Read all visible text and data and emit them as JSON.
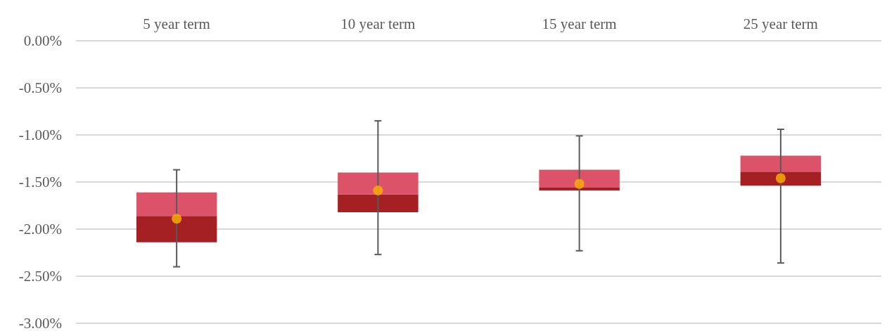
{
  "chart_data": {
    "type": "box",
    "categories": [
      "5 year term",
      "10 year term",
      "15 year term",
      "25 year term"
    ],
    "series": [
      {
        "color": "#a52023",
        "boxes": [
          {
            "low": -2.4,
            "q1": -2.14,
            "median": -1.86,
            "q3": -1.61,
            "high": -1.37
          },
          {
            "low": -2.27,
            "q1": -1.82,
            "median": -1.63,
            "q3": -1.4,
            "high": -0.85
          },
          {
            "low": -2.23,
            "q1": -1.59,
            "median": -1.56,
            "q3": -1.37,
            "high": -1.01
          },
          {
            "low": -2.36,
            "q1": -1.54,
            "median": -1.39,
            "q3": -1.22,
            "high": -0.94
          }
        ]
      },
      {
        "type": "scatter",
        "color": "#ffb000",
        "marker": "circle",
        "x": [
          "5 year term",
          "10 year term",
          "15 year term",
          "25 year term"
        ],
        "values": [
          -1.89,
          -1.59,
          -1.52,
          -1.46
        ]
      }
    ],
    "ylim": [
      -3,
      0
    ],
    "yticks": [
      {
        "value": 0,
        "label": "0.00%"
      },
      {
        "value": -0.5,
        "label": "-0.50%"
      },
      {
        "value": -1,
        "label": "-1.00%"
      },
      {
        "value": -1.5,
        "label": "-1.50%"
      },
      {
        "value": -2,
        "label": "-2.00%"
      },
      {
        "value": -2.5,
        "label": "-2.50%"
      },
      {
        "value": -3,
        "label": "-3.00%"
      }
    ],
    "grid": "y"
  }
}
